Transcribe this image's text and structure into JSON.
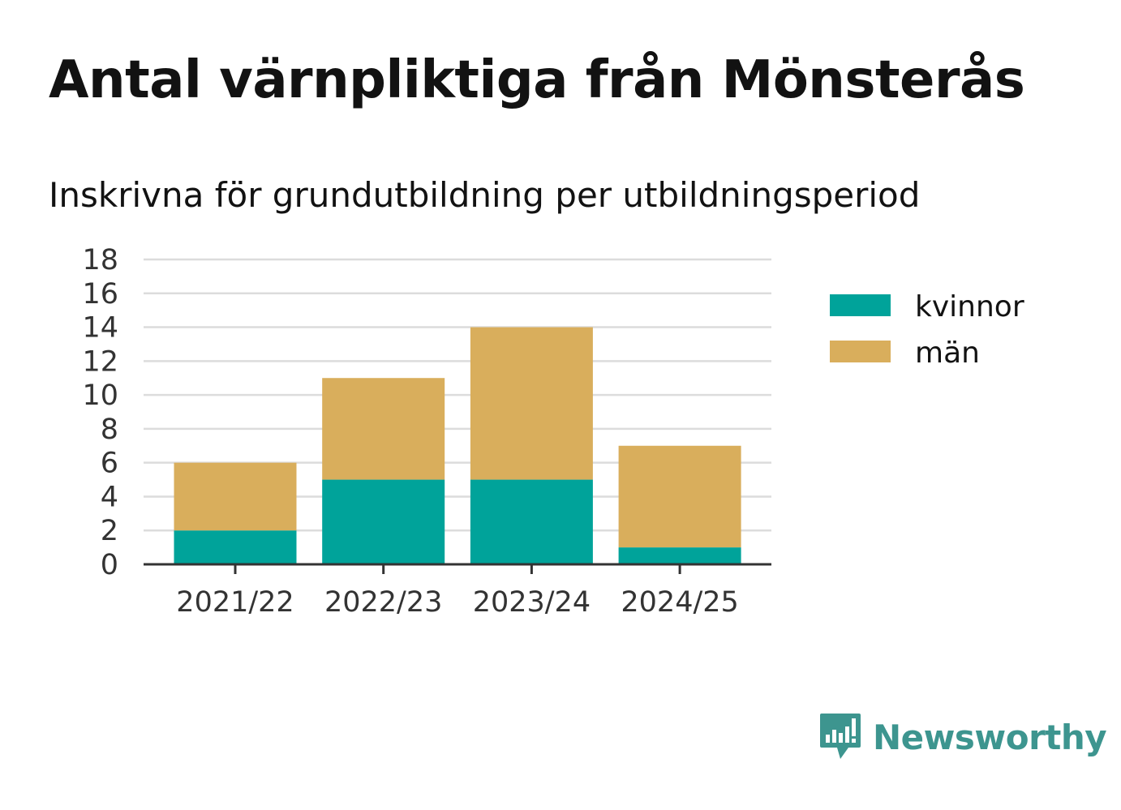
{
  "header": {
    "title": "Antal värnpliktiga från Mönsterås",
    "subtitle": "Inskrivna för grundutbildning per utbildningsperiod"
  },
  "brand": {
    "name": "Newsworthy",
    "logo_icon": "newsworthy-logo-icon",
    "color": "#3d958f"
  },
  "chart_data": {
    "type": "bar",
    "stacked": true,
    "title": "Antal värnpliktiga från Mönsterås",
    "subtitle": "Inskrivna för grundutbildning per utbildningsperiod",
    "categories": [
      "2021/22",
      "2022/23",
      "2023/24",
      "2024/25"
    ],
    "series": [
      {
        "name": "kvinnor",
        "color": "#00a39a",
        "values": [
          2,
          5,
          5,
          1
        ]
      },
      {
        "name": "män",
        "color": "#d9ae5c",
        "values": [
          4,
          6,
          9,
          6
        ]
      }
    ],
    "ylim": [
      0,
      18
    ],
    "yticks": [
      0,
      2,
      4,
      6,
      8,
      10,
      12,
      14,
      16,
      18
    ],
    "grid": true,
    "legend_position": "right"
  }
}
